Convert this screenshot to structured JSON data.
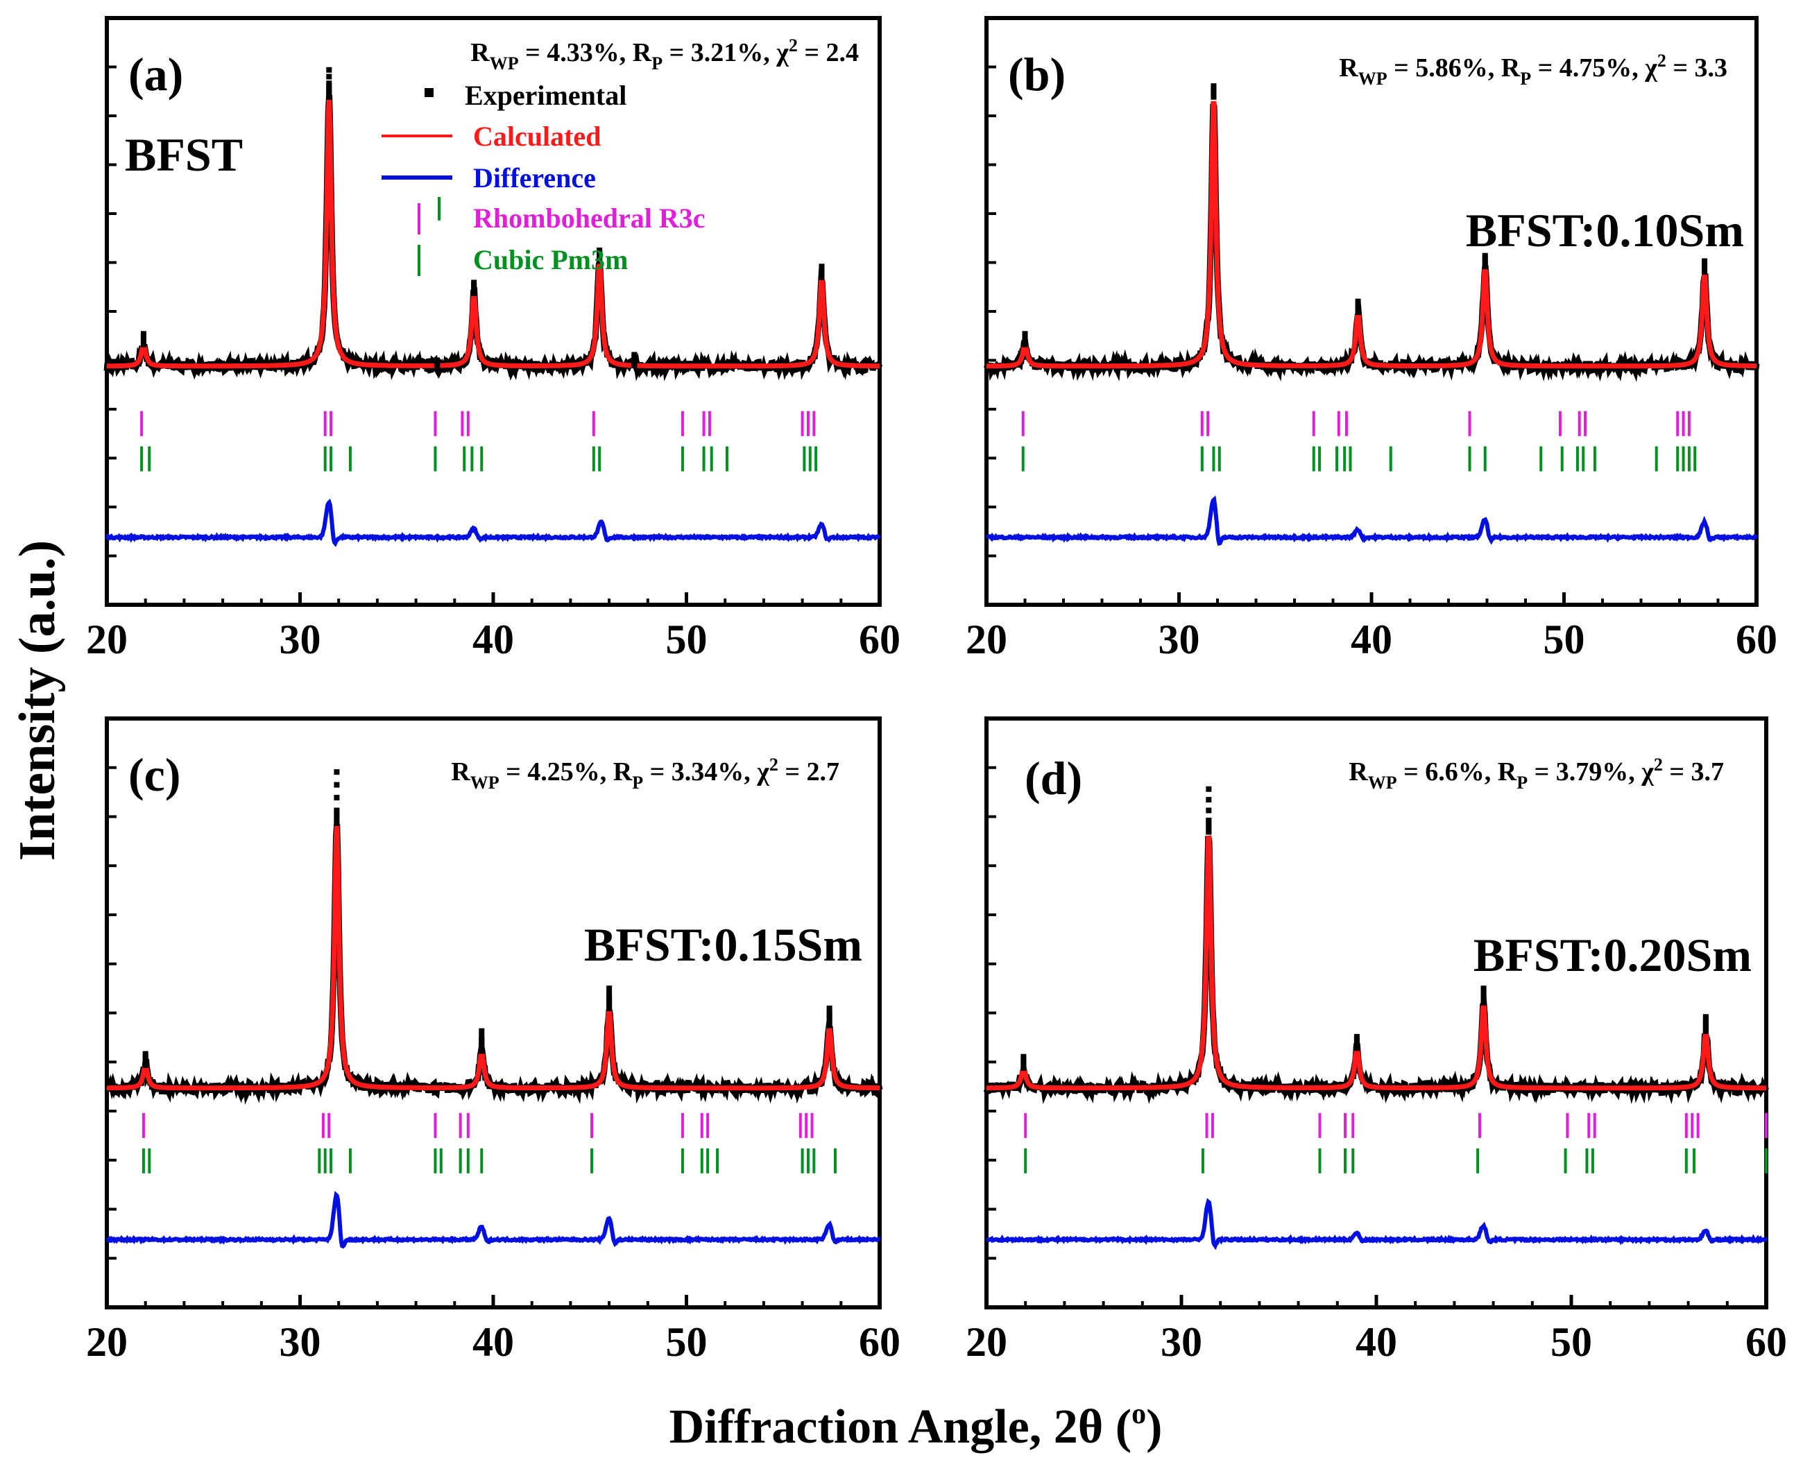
{
  "figure": {
    "y_axis_label": "Intensity (a.u.)",
    "x_axis_label_prefix": "Diffraction Angle, 2θ (",
    "x_axis_label_degree": "o",
    "x_axis_label_suffix": ")"
  },
  "colors": {
    "experimental": "#000000",
    "calculated": "#ff1a1a",
    "difference": "#0010e0",
    "rhombohedral": "#e020d8",
    "cubic": "#009020"
  },
  "legend": {
    "experimental": "Experimental",
    "calculated": "Calculated",
    "difference": "Difference",
    "rhombohedral": "Rhombohedral R3c",
    "cubic": "Cubic Pm3m"
  },
  "chart_data": [
    {
      "type": "line",
      "panel": "(a)",
      "sample": "BFST",
      "fit": {
        "rwp": "4.33%",
        "rp": "3.21%",
        "chi2": "2.4"
      },
      "xlim": [
        20,
        60
      ],
      "xticks": [
        20,
        30,
        40,
        50,
        60
      ],
      "baseline": 0.18,
      "peaks": [
        {
          "x": 21.9,
          "h": 0.08
        },
        {
          "x": 31.5,
          "h": 1.0
        },
        {
          "x": 39.0,
          "h": 0.27
        },
        {
          "x": 45.5,
          "h": 0.39
        },
        {
          "x": 57.0,
          "h": 0.33
        }
      ],
      "exp_extra": [
        {
          "x": 31.5,
          "h": 0.1
        },
        {
          "x": 37.1,
          "h": 0.02
        },
        {
          "x": 47.3,
          "h": 0.04
        }
      ],
      "rhombohedral_ticks": [
        21.8,
        31.3,
        31.6,
        37.0,
        38.4,
        38.7,
        45.2,
        49.8,
        50.9,
        51.2,
        56.0,
        56.3,
        56.6
      ],
      "cubic_ticks": [
        21.8,
        22.2,
        31.3,
        31.6,
        32.6,
        37.0,
        38.5,
        38.9,
        39.4,
        45.2,
        45.5,
        49.8,
        50.9,
        51.3,
        52.1,
        56.1,
        56.4,
        56.7
      ],
      "extra_cubic_tick": 37.2,
      "diff_baseline": 0.0,
      "diff_peaks": [
        {
          "x": 31.5,
          "h": 0.28
        },
        {
          "x": 39.0,
          "h": 0.07
        },
        {
          "x": 45.6,
          "h": 0.12
        },
        {
          "x": 57.0,
          "h": 0.1
        }
      ]
    },
    {
      "type": "line",
      "panel": "(b)",
      "sample": "BFST:0.10Sm",
      "fit": {
        "rwp": "5.86%",
        "rp": "4.75%",
        "chi2": "3.3"
      },
      "xlim": [
        20,
        60
      ],
      "xticks": [
        20,
        30,
        40,
        50,
        60
      ],
      "baseline": 0.18,
      "peaks": [
        {
          "x": 22.0,
          "h": 0.08
        },
        {
          "x": 31.8,
          "h": 1.0
        },
        {
          "x": 39.3,
          "h": 0.2
        },
        {
          "x": 45.9,
          "h": 0.37
        },
        {
          "x": 57.3,
          "h": 0.35
        }
      ],
      "exp_extra": [
        {
          "x": 31.8,
          "h": 0.03
        }
      ],
      "rhombohedral_ticks": [
        21.9,
        31.2,
        31.5,
        37.0,
        38.3,
        38.7,
        45.1,
        49.8,
        50.8,
        51.1,
        55.9,
        56.2,
        56.5
      ],
      "cubic_ticks": [
        21.9,
        31.2,
        31.8,
        32.1,
        37.0,
        37.3,
        38.2,
        38.6,
        38.9,
        41.0,
        45.1,
        45.9,
        48.8,
        49.9,
        50.7,
        51.0,
        51.6,
        54.8,
        55.9,
        56.2,
        56.5,
        56.8
      ],
      "diff_baseline": 0.0,
      "diff_peaks": [
        {
          "x": 31.8,
          "h": 0.3
        },
        {
          "x": 39.3,
          "h": 0.06
        },
        {
          "x": 45.9,
          "h": 0.14
        },
        {
          "x": 57.3,
          "h": 0.12
        }
      ]
    },
    {
      "type": "line",
      "panel": "(c)",
      "sample": "BFST:0.15Sm",
      "fit": {
        "rwp": "4.25%",
        "rp": "3.34%",
        "chi2": "2.7"
      },
      "xlim": [
        20,
        60
      ],
      "xticks": [
        20,
        30,
        40,
        50,
        60
      ],
      "baseline": 0.06,
      "peaks": [
        {
          "x": 22.0,
          "h": 0.08
        },
        {
          "x": 31.9,
          "h": 0.93
        },
        {
          "x": 39.4,
          "h": 0.13
        },
        {
          "x": 46.0,
          "h": 0.28
        },
        {
          "x": 57.4,
          "h": 0.22
        }
      ],
      "exp_extra": [
        {
          "x": 31.9,
          "h": 0.18
        },
        {
          "x": 39.4,
          "h": 0.07
        },
        {
          "x": 46.0,
          "h": 0.07
        },
        {
          "x": 57.4,
          "h": 0.06
        }
      ],
      "rhombohedral_ticks": [
        21.9,
        31.2,
        31.5,
        37.0,
        38.3,
        38.7,
        45.1,
        49.8,
        50.8,
        51.1,
        55.9,
        56.2,
        56.5
      ],
      "cubic_ticks": [
        21.9,
        22.2,
        31.0,
        31.3,
        31.6,
        32.6,
        37.0,
        37.3,
        38.3,
        38.7,
        39.4,
        45.1,
        49.8,
        50.8,
        51.1,
        51.6,
        56.0,
        56.3,
        56.6,
        57.7
      ],
      "diff_baseline": 0.0,
      "diff_peaks": [
        {
          "x": 31.9,
          "h": 0.35
        },
        {
          "x": 39.4,
          "h": 0.1
        },
        {
          "x": 46.0,
          "h": 0.17
        },
        {
          "x": 57.4,
          "h": 0.12
        }
      ]
    },
    {
      "type": "line",
      "panel": "(d)",
      "sample": "BFST:0.20Sm",
      "fit": {
        "rwp": "6.6%",
        "rp": "3.79%",
        "chi2": "3.7"
      },
      "xlim": [
        20,
        60
      ],
      "xticks": [
        20,
        30,
        40,
        50,
        60
      ],
      "baseline": 0.06,
      "peaks": [
        {
          "x": 21.9,
          "h": 0.07
        },
        {
          "x": 31.4,
          "h": 0.9
        },
        {
          "x": 39.0,
          "h": 0.14
        },
        {
          "x": 45.5,
          "h": 0.3
        },
        {
          "x": 56.9,
          "h": 0.2
        }
      ],
      "exp_extra": [
        {
          "x": 31.4,
          "h": 0.15
        },
        {
          "x": 45.5,
          "h": 0.05
        },
        {
          "x": 56.9,
          "h": 0.05
        }
      ],
      "rhombohedral_ticks": [
        22.0,
        31.3,
        31.6,
        37.1,
        38.4,
        38.8,
        45.3,
        49.8,
        50.9,
        51.2,
        55.9,
        56.2,
        56.5,
        60.0
      ],
      "cubic_ticks": [
        22.0,
        31.1,
        37.1,
        38.4,
        38.8,
        45.2,
        49.7,
        50.8,
        51.1,
        55.9,
        56.3,
        60.0
      ],
      "diff_baseline": 0.0,
      "diff_peaks": [
        {
          "x": 31.4,
          "h": 0.3
        },
        {
          "x": 39.0,
          "h": 0.05
        },
        {
          "x": 45.5,
          "h": 0.11
        },
        {
          "x": 56.9,
          "h": 0.07
        }
      ]
    }
  ]
}
